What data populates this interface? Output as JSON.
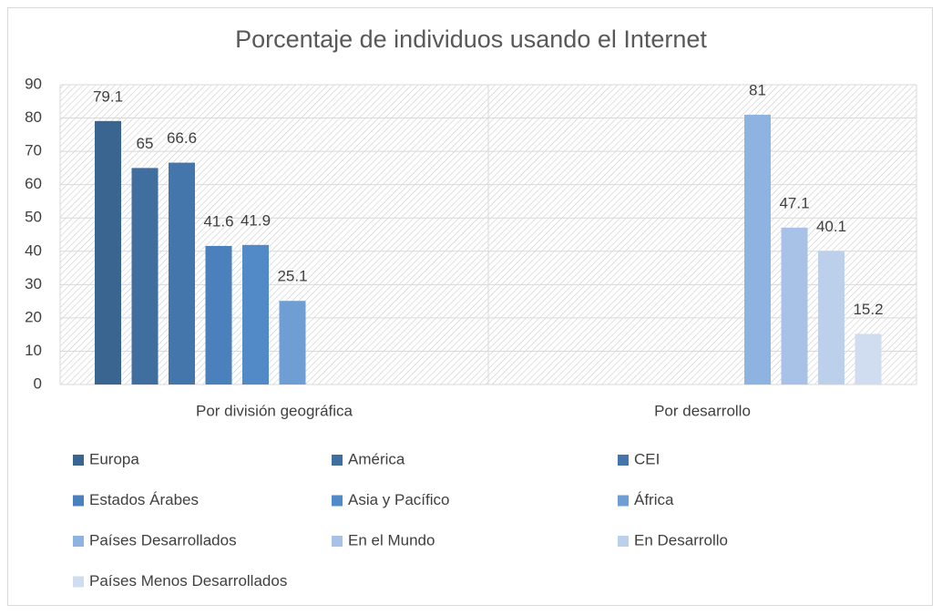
{
  "chart_data": {
    "type": "bar",
    "title": "Porcentaje de individuos usando el Internet",
    "categories": [
      "Por división geográfica",
      "Por desarrollo"
    ],
    "series": [
      {
        "name": "Europa",
        "color": "#3a6591",
        "values": [
          79.1,
          null
        ]
      },
      {
        "name": "América",
        "color": "#3f6e9f",
        "values": [
          65,
          null
        ]
      },
      {
        "name": "CEI",
        "color": "#4476ac",
        "values": [
          66.6,
          null
        ]
      },
      {
        "name": "Estados Árabes",
        "color": "#4a80bb",
        "values": [
          41.6,
          null
        ]
      },
      {
        "name": "Asia y Pacífico",
        "color": "#5289c7",
        "values": [
          41.9,
          null
        ]
      },
      {
        "name": "África",
        "color": "#6e9ed4",
        "values": [
          25.1,
          null
        ]
      },
      {
        "name": "Países Desarrollados",
        "color": "#8fb3e0",
        "values": [
          null,
          81
        ]
      },
      {
        "name": "En el Mundo",
        "color": "#a7c2e6",
        "values": [
          null,
          47.1
        ]
      },
      {
        "name": "En Desarrollo",
        "color": "#bcd0ec",
        "values": [
          null,
          40.1
        ]
      },
      {
        "name": "Países Menos Desarrollados",
        "color": "#d0dcf0",
        "values": [
          null,
          15.2
        ]
      }
    ],
    "ylim": [
      0,
      90
    ],
    "yticks": [
      0,
      10,
      20,
      30,
      40,
      50,
      60,
      70,
      80,
      90
    ],
    "grid": true,
    "legend": "bottom"
  }
}
